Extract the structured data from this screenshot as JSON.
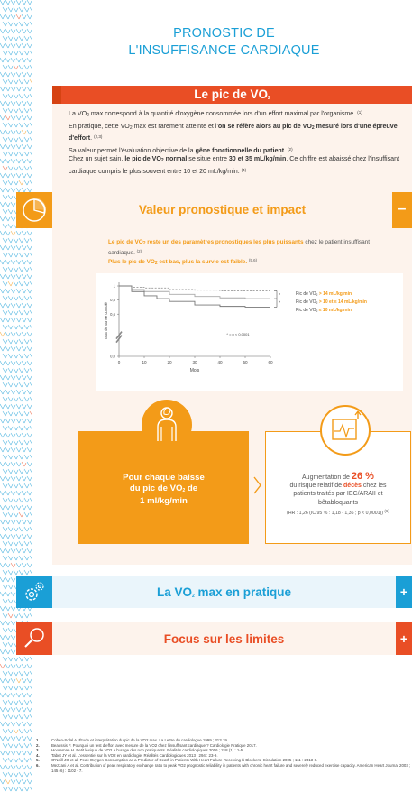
{
  "title": {
    "line1": "PRONOSTIC DE",
    "line2": "L'INSUFFISANCE CARDIAQUE"
  },
  "section1": {
    "heading_pre": "Le pic de VO",
    "heading_sub": "2",
    "p1_pre": "La VO",
    "p1_sub": "2",
    "p1_post": " max correspond à la quantité d'oxygène consommée lors d'un effort maximal par l'organisme.",
    "p1_ref": "(1)",
    "p2_pre": "En pratique, cette VO",
    "p2_sub": "2",
    "p2_mid": " max est rarement atteinte et l'",
    "p2_bold1": "on se réfère alors au pic de VO",
    "p2_bold_sub": "2",
    "p2_bold2": " mesuré lors d'une épreuve d'effort",
    "p2_end": ".",
    "p2_ref": "(2,3)",
    "p3_pre": "Sa valeur permet l'évaluation objective de la ",
    "p3_bold": "gêne fonctionnelle du patient",
    "p3_end": ".",
    "p3_ref": "(2)",
    "p4_pre": "Chez un sujet sain, ",
    "p4_bold1": "le pic de VO",
    "p4_bold_sub": "2",
    "p4_bold2": " normal",
    "p4_mid": " se situe entre ",
    "p4_bold3": "30 et 35 mL/kg/min",
    "p4_post": ". Ce chiffre est abaissé chez l'insuffisant cardiaque compris le plus souvent entre 10 et 20 mL/kg/min.",
    "p4_ref": "(4)"
  },
  "section2": {
    "heading": "Valeur pronostique et impact",
    "toggle": "–",
    "intro1_bold_pre": "Le pic de VO",
    "intro1_bold_sub": "2",
    "intro1_bold_post": " reste un des paramètres pronostiques les plus puissants",
    "intro1_post": " chez le patient insuffisant cardiaque.",
    "intro1_ref": "(2)",
    "intro2_bold_pre": "Plus le pic de VO",
    "intro2_bold_sub": "2",
    "intro2_bold_post": " est bas, plus la survie est faible.",
    "intro2_ref": "(5,6)",
    "box_line1": "Pour chaque baisse",
    "box_line2_pre": "du pic de VO",
    "box_line2_sub": "2",
    "box_line2_post": " de",
    "box_line3": "1 ml/kg/min",
    "res_line1_pre": "Augmentation de ",
    "res_pct": "26 %",
    "res_line2_pre": "du risque relatif de ",
    "res_red": "décès",
    "res_line2_post": " chez les",
    "res_line3": "patients traités par IEC/ARAII et",
    "res_line4": "bêtabloquants",
    "res_small": "(HR : 1,26 (IC 95 % : 1,18 - 1,36 ; p < 0,0001))",
    "res_ref": "(6)"
  },
  "chart_data": {
    "type": "line",
    "title": "",
    "xlabel": "Mois",
    "ylabel": "Taux de survie cumulé",
    "x_ticks": [
      0,
      10,
      20,
      30,
      40,
      50,
      60
    ],
    "y_ticks": [
      0,
      0.2,
      0.4,
      0.6,
      0.8,
      1
    ],
    "y_tick_labels": [
      "0,0",
      "0,2",
      "0,4",
      "0,6",
      "0,8",
      "1"
    ],
    "xlim": [
      0,
      60
    ],
    "ylim": [
      0,
      1
    ],
    "y_axis_break": true,
    "series": [
      {
        "name": "Pic de VO2 > 14 mL/kg/min",
        "color": "#999999",
        "dash": true,
        "x": [
          0,
          5,
          10,
          20,
          30,
          40,
          50,
          60
        ],
        "y": [
          1.0,
          0.98,
          0.97,
          0.95,
          0.94,
          0.93,
          0.93,
          0.93
        ]
      },
      {
        "name": "Pic de VO2 > 10 et ≤ 14 mL/kg/min",
        "color": "#aaaaaa",
        "dash": false,
        "x": [
          0,
          5,
          10,
          20,
          30,
          40,
          50,
          60
        ],
        "y": [
          1.0,
          0.95,
          0.92,
          0.88,
          0.85,
          0.83,
          0.82,
          0.82
        ]
      },
      {
        "name": "Pic de VO2 ≤ 10 mL/kg/min",
        "color": "#777777",
        "dash": false,
        "x": [
          0,
          5,
          10,
          15,
          20,
          30,
          40,
          50,
          60
        ],
        "y": [
          1.0,
          0.92,
          0.86,
          0.82,
          0.78,
          0.73,
          0.71,
          0.7,
          0.7
        ]
      }
    ],
    "legend": [
      {
        "pre": "Pic de VO",
        "sub": "2",
        "post": " > 14 mL/kg/min"
      },
      {
        "pre": "Pic de VO",
        "sub": "2",
        "post": " > 10 et ≤ 14 mL/kg/min"
      },
      {
        "pre": "Pic de VO",
        "sub": "2",
        "post": " ≤ 10 mL/kg/min"
      }
    ],
    "annotation": "* = p < 0,0001",
    "asterisk": "*",
    "legend_placement": "right"
  },
  "section3": {
    "heading_pre": "La VO",
    "heading_sub": "2",
    "heading_post": " max en pratique",
    "toggle": "+"
  },
  "section4": {
    "heading": "Focus sur les limites",
    "toggle": "+"
  },
  "colors": {
    "blue": "#1a9fd6",
    "orange": "#f39b18",
    "red": "#e94e25",
    "cream": "#fdf3ec"
  },
  "icons": {
    "sec2": "pie-chart-icon",
    "sec3": "gears-icon",
    "sec4": "magnifier-icon",
    "person": "runner-icon",
    "monitor": "heart-monitor-icon"
  },
  "references": [
    {
      "num": "1.",
      "text": "Cohen-Solal A. Étude et interprétation du pic de la VO2 max. La Lettre du cardiologue 1999 ; 313 : 9."
    },
    {
      "num": "2.",
      "text": "Beaussis F. Pourquoi un test d'effort avec mesure de la VO2 chez l'insuffisant cardiaque ? Cardiologie Pratique 2017."
    },
    {
      "num": "3.",
      "text": "Hooreman H. Petit lexique de VO2 à l'usage des non pratiquants. Réalités cardiologiques 2006 ; 218 (1) : 1-5."
    },
    {
      "num": "4.",
      "text": "Tabet JY et al. L'essentiel sur la VO2 en cardiologie. Réalités Cardiologiques 2013 ; 294 : 23-9."
    },
    {
      "num": "5.",
      "text": "O'Neill JO et al. Peak Oxygen Consumption as a Predictor of Death in Patients With Heart Failure Receiving ß-Blockers. Circulation 2005 ; 111 : 2313-8."
    },
    {
      "num": "6.",
      "text": "Mezzani A et al. Contribution of peak respiratory exchange ratio to peak VO2 prognostic reliability in patients with chronic heart failure and severely reduced exercise capacity. American Heart Journal 2003 ; 145 (6) : 1102 - 7."
    }
  ]
}
